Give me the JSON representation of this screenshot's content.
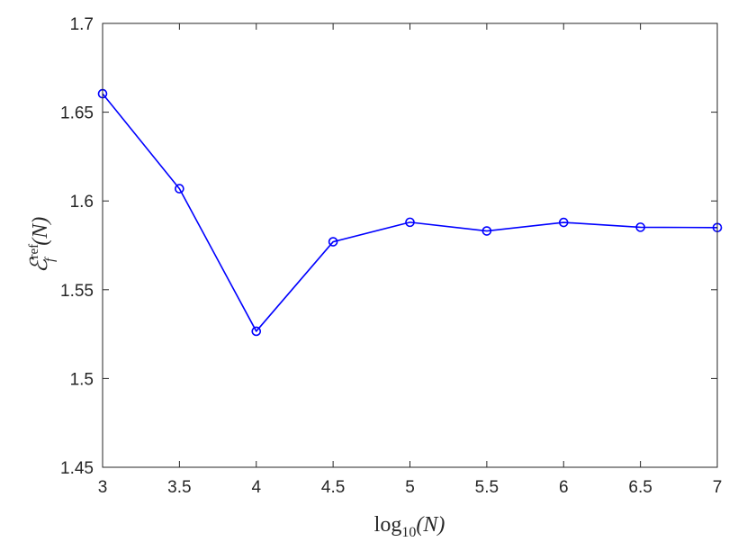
{
  "chart_data": {
    "type": "line",
    "xlabel": "log10(N)",
    "ylabel": "E_f^ref(N)",
    "xlim": [
      3,
      7
    ],
    "ylim": [
      1.45,
      1.7
    ],
    "grid": false,
    "x_ticks": [
      "3",
      "3.5",
      "4",
      "4.5",
      "5",
      "5.5",
      "6",
      "6.5",
      "7"
    ],
    "y_ticks": [
      "1.45",
      "1.5",
      "1.55",
      "1.6",
      "1.65",
      "1.7"
    ],
    "series": [
      {
        "marker": "circle",
        "color": "#0000ff",
        "x": [
          3,
          3.5,
          4,
          4.5,
          5,
          5.5,
          6,
          6.5,
          7
        ],
        "y": [
          1.6604,
          1.6069,
          1.5266,
          1.577,
          1.588,
          1.5831,
          1.5879,
          1.5852,
          1.585
        ]
      }
    ]
  },
  "axis_text": {
    "xlabel": {
      "base": "log",
      "sub": "10",
      "arg": "(N)"
    },
    "ylabel": {
      "base": "ℰ",
      "sup": "ref",
      "sub": "f",
      "arg": "(N)"
    }
  }
}
